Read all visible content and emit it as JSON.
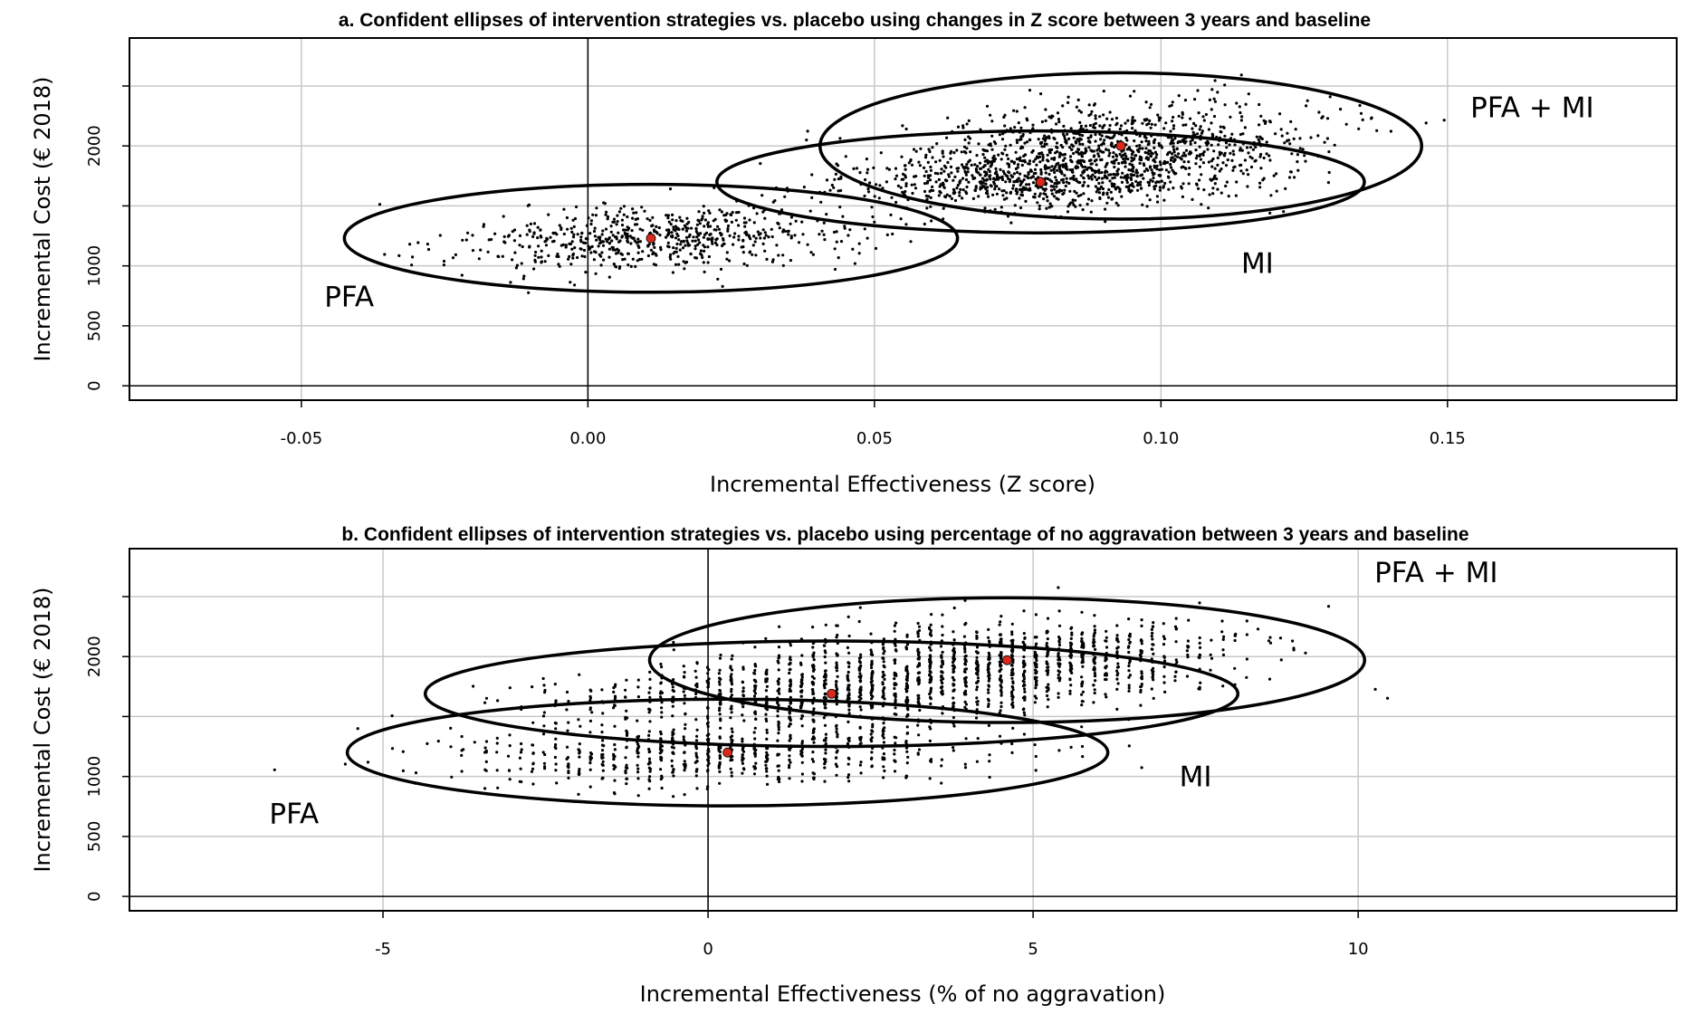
{
  "chart_data": [
    {
      "type": "scatter",
      "title": "a. Confident ellipses of intervention strategies vs. placebo using changes in Z score between 3 years and baseline",
      "xlabel": "Incremental Effectiveness (Z score)",
      "ylabel": "Incremental Cost (€ 2018)",
      "xlim": [
        -0.08,
        0.19
      ],
      "ylim": [
        -120,
        2900
      ],
      "xticks": [
        "-0.05",
        "0.00",
        "0.05",
        "0.10",
        "0.15"
      ],
      "yticks": [
        "0",
        "500",
        "1000",
        "2000"
      ],
      "grid": true,
      "series": [
        {
          "name": "PFA",
          "center_x": 0.011,
          "center_y": 1230,
          "ellipse_rx": 0.0535,
          "ellipse_ry": 450,
          "spread_x": 0.017,
          "spread_y": 135,
          "n_points": 650,
          "label_x": -0.046,
          "label_y": 660
        },
        {
          "name": "MI",
          "center_x": 0.079,
          "center_y": 1700,
          "ellipse_rx": 0.0565,
          "ellipse_ry": 425,
          "spread_x": 0.018,
          "spread_y": 130,
          "n_points": 700,
          "label_x": 0.114,
          "label_y": 940
        },
        {
          "name": "PFA + MI",
          "center_x": 0.093,
          "center_y": 2000,
          "ellipse_rx": 0.0525,
          "ellipse_ry": 610,
          "spread_x": 0.017,
          "spread_y": 185,
          "n_points": 900,
          "label_x": 0.154,
          "label_y": 2240
        }
      ]
    },
    {
      "type": "scatter",
      "title": "b. Confident ellipses of intervention strategies vs. placebo using percentage of no aggravation between 3 years and baseline",
      "xlabel": "Incremental Effectiveness (% of no aggravation)",
      "ylabel": "Incremental Cost (€ 2018)",
      "xlim": [
        -8.9,
        14.9
      ],
      "ylim": [
        -120,
        2900
      ],
      "xticks": [
        "-5",
        "0",
        "5",
        "10"
      ],
      "yticks": [
        "0",
        "500",
        "1000",
        "2000"
      ],
      "grid": true,
      "series": [
        {
          "name": "PFA",
          "center_x": 0.3,
          "center_y": 1200,
          "ellipse_rx": 5.85,
          "ellipse_ry": 445,
          "spread_x": 2.0,
          "spread_y": 135,
          "n_points": 650,
          "label_x": -6.75,
          "label_y": 610
        },
        {
          "name": "MI",
          "center_x": 1.9,
          "center_y": 1690,
          "ellipse_rx": 6.25,
          "ellipse_ry": 440,
          "spread_x": 2.1,
          "spread_y": 135,
          "n_points": 700,
          "label_x": 7.25,
          "label_y": 920
        },
        {
          "name": "PFA + MI",
          "center_x": 4.6,
          "center_y": 1970,
          "ellipse_rx": 5.5,
          "ellipse_ry": 520,
          "spread_x": 1.9,
          "spread_y": 160,
          "n_points": 900,
          "label_x": 10.25,
          "label_y": 2620
        }
      ]
    }
  ],
  "styles": {
    "point_color": "#000000",
    "center_color": "#d9291b",
    "grid_color": "#c8c8c8"
  }
}
